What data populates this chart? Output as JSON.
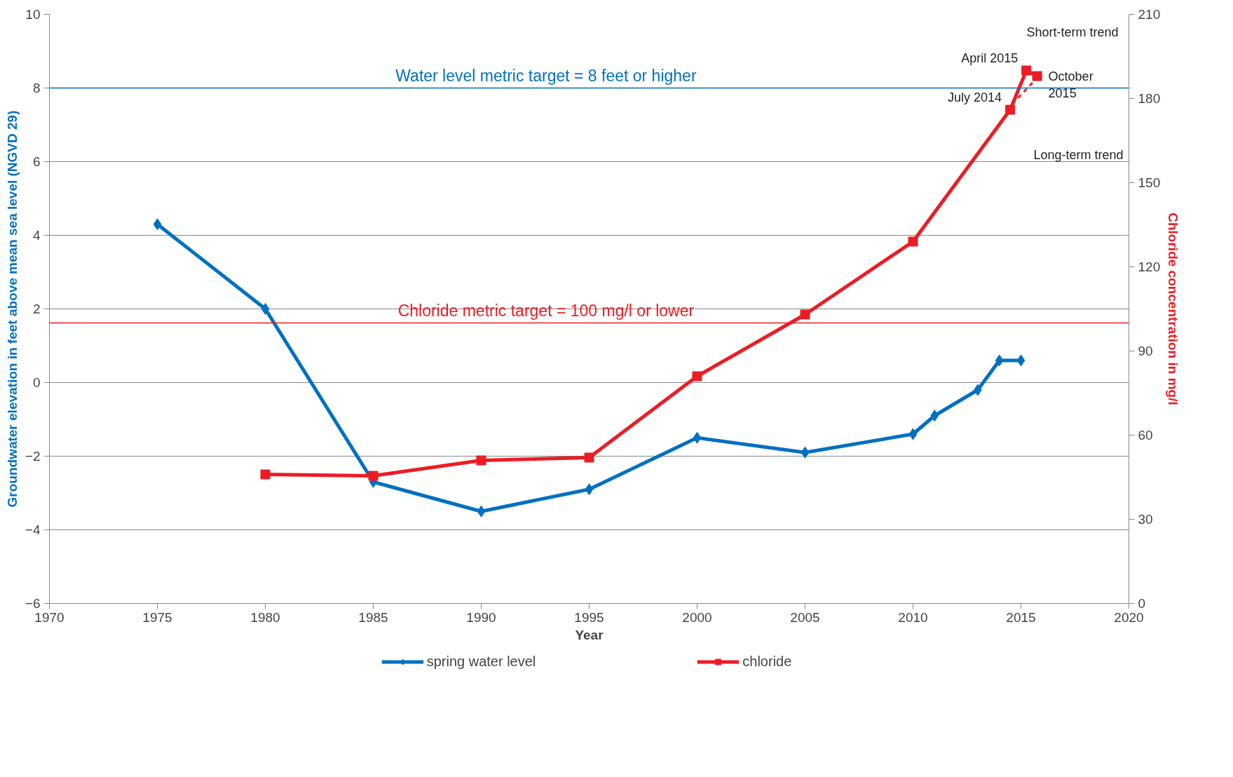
{
  "chart_data": {
    "type": "line",
    "xlabel": "Year",
    "ylabel": "Groundwater elevation in feet above mean sea level (NGVD 29)",
    "y2label": "Chloride concentration in mg/l",
    "xlim": [
      1970,
      2020
    ],
    "xticks": [
      1970,
      1975,
      1980,
      1985,
      1990,
      1995,
      2000,
      2005,
      2010,
      2015,
      2020
    ],
    "ylim": [
      -6,
      10
    ],
    "yticks": [
      -6,
      -4,
      -2,
      0,
      2,
      4,
      6,
      8,
      10
    ],
    "y2lim": [
      0,
      210
    ],
    "y2ticks": [
      0,
      30,
      60,
      90,
      120,
      150,
      180,
      210
    ],
    "grid": "y",
    "legend": "bottom",
    "line_style": "solid",
    "series": [
      {
        "name": "spring water level",
        "color": "#0070c0",
        "marker": "diamond",
        "x": [
          1975,
          1980,
          1985,
          1990,
          1995,
          2000,
          2005,
          2010,
          2011,
          2013,
          2014,
          2015
        ],
        "values": [
          4.3,
          2.0,
          -2.7,
          -3.5,
          -2.9,
          -1.5,
          -1.9,
          -1.4,
          -0.9,
          -0.2,
          0.6,
          0.6
        ]
      },
      {
        "name": "chloride",
        "color": "#ed1c24",
        "marker": "square",
        "axis": "y2",
        "x": [
          1980,
          1985,
          1990,
          1995,
          2000,
          2005,
          2010,
          2014.5,
          2015.25,
          2015.75
        ],
        "values": [
          46,
          45.5,
          51,
          52,
          81,
          103,
          129,
          176,
          190,
          188
        ],
        "value_labels": [
          null,
          null,
          null,
          null,
          null,
          null,
          null,
          "July 2014",
          "April 2015",
          "October\n2015"
        ]
      },
      {
        "type": "line",
        "color": "#ed1c24",
        "marker": "none",
        "line_style": "dashed",
        "axis": "y2",
        "x": [
          2014.6,
          2015.7
        ],
        "values": [
          178,
          187
        ]
      }
    ],
    "ref_lines": [
      {
        "axis": "y",
        "value": 8,
        "label": "Water level metric target = 8 feet or higher",
        "color": "#0070c0"
      },
      {
        "axis": "y2",
        "value": 100,
        "label": "Chloride metric target = 100 mg/l or lower",
        "color": "#ed1c24"
      }
    ],
    "annotations": [
      "Short-term trend",
      "Long-term trend"
    ]
  }
}
